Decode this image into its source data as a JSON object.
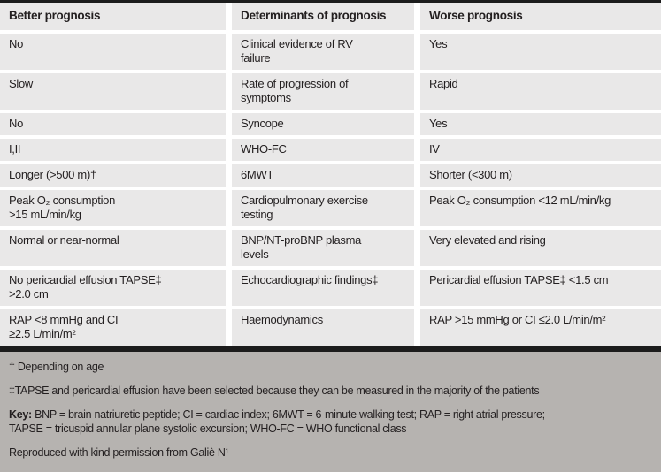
{
  "table": {
    "headers": [
      "Better prognosis",
      "Determinants of prognosis",
      "Worse prognosis"
    ],
    "rows": [
      [
        "No",
        "Clinical evidence of RV\nfailure",
        "Yes"
      ],
      [
        "Slow",
        "Rate of progression of\nsymptoms",
        "Rapid"
      ],
      [
        "No",
        "Syncope",
        "Yes"
      ],
      [
        "I,II",
        "WHO-FC",
        "IV"
      ],
      [
        "Longer (>500 m)†",
        "6MWT",
        "Shorter (<300 m)"
      ],
      [
        "Peak O₂ consumption\n>15 mL/min/kg",
        "Cardiopulmonary exercise\ntesting",
        "Peak O₂ consumption <12 mL/min/kg"
      ],
      [
        "Normal or near-normal",
        "BNP/NT-proBNP plasma\nlevels",
        "Very elevated and rising"
      ],
      [
        "No pericardial effusion TAPSE‡\n>2.0 cm",
        "Echocardiographic findings‡",
        "Pericardial effusion TAPSE‡ <1.5 cm"
      ],
      [
        "RAP <8 mmHg and CI\n≥2.5 L/min/m²",
        "Haemodynamics",
        "RAP >15 mmHg or CI ≤2.0 L/min/m²"
      ]
    ]
  },
  "footnotes": {
    "note1": "† Depending on age",
    "note2": "‡TAPSE and pericardial effusion have been selected because they can be measured in the majority of the patients",
    "key_label": "Key:",
    "key_text": " BNP = brain natriuretic peptide; CI = cardiac index; 6MWT = 6-minute walking test; RAP = right atrial pressure;\nTAPSE = tricuspid annular plane systolic excursion; WHO-FC = WHO functional class",
    "credit": "Reproduced with kind permission from Galiè N¹"
  },
  "colors": {
    "cell_bg": "#e9e8e8",
    "footer_bg": "#b6b3b0",
    "bar": "#1c1c1c",
    "text": "#231f20"
  }
}
